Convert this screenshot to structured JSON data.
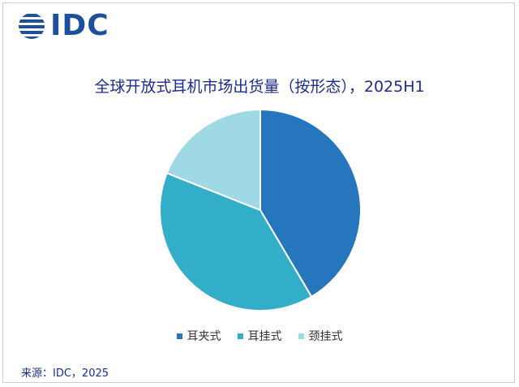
{
  "logo": {
    "text": "IDC"
  },
  "chart_data": {
    "type": "pie",
    "title": "全球开放式耳机市场出货量（按形态），2025H1",
    "categories": [
      "耳夹式",
      "耳挂式",
      "颈挂式"
    ],
    "values": [
      41.5,
      39.5,
      19.0
    ],
    "colors": [
      "#2576bc",
      "#33aec8",
      "#9fd9e6"
    ],
    "legend_position": "bottom",
    "start_angle_deg": 0,
    "direction": "clockwise"
  },
  "source": "来源：IDC，2025"
}
